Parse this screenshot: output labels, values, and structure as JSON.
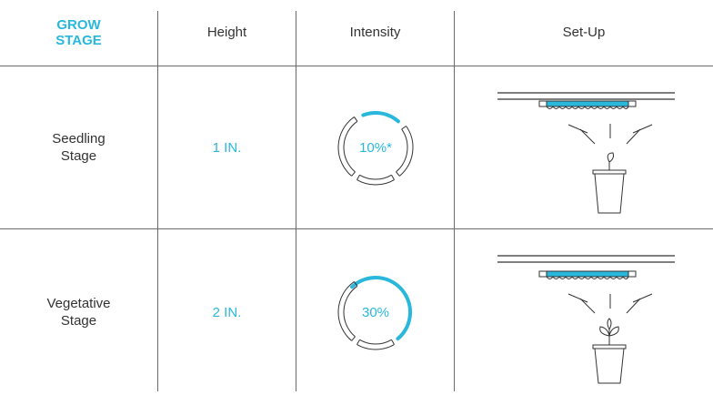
{
  "header": {
    "grow_stage_line1": "GROW",
    "grow_stage_line2": "STAGE",
    "height": "Height",
    "intensity": "Intensity",
    "setup": "Set-Up"
  },
  "rows": [
    {
      "stage_line1": "Seedling",
      "stage_line2": "Stage",
      "height": "1 IN.",
      "intensity_label": "10%*",
      "intensity_percent": 10,
      "plant": "seedling-icon"
    },
    {
      "stage_line1": "Vegetative",
      "stage_line2": "Stage",
      "height": "2 IN.",
      "intensity_label": "30%",
      "intensity_percent": 30,
      "plant": "sprout-icon"
    }
  ],
  "colors": {
    "accent": "#29b8dc",
    "line": "#333333",
    "grid": "#6b6b6b"
  }
}
